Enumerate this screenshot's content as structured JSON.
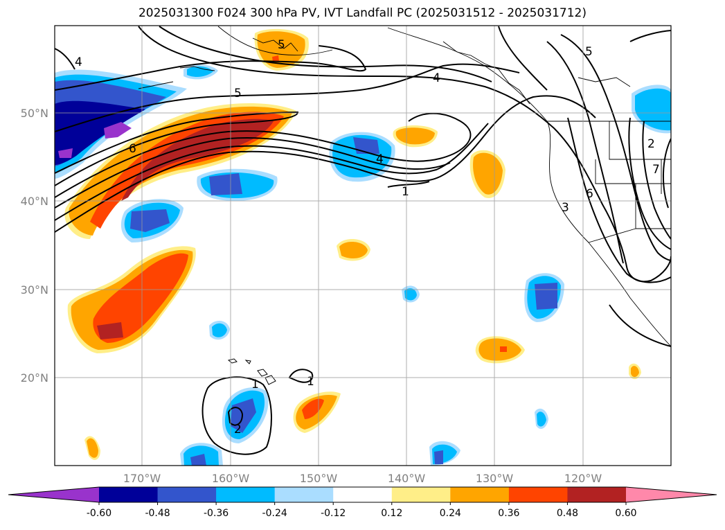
{
  "title": "2025031300 F024 300 hPa PV, IVT Landfall PC (2025031512 - 2025031712)",
  "map": {
    "lat_labels": [
      "50°N",
      "40°N",
      "30°N",
      "20°N"
    ],
    "lon_labels": [
      "170°W",
      "160°W",
      "150°W",
      "140°W",
      "130°W",
      "120°W"
    ],
    "contour_labels": [
      "4",
      "5",
      "5",
      "4",
      "6",
      "4",
      "1",
      "1",
      "1",
      "2",
      "6",
      "3",
      "7",
      "2",
      "5"
    ]
  },
  "colorbar": {
    "ticks": [
      "-0.60",
      "-0.48",
      "-0.36",
      "-0.24",
      "-0.12",
      "0.12",
      "0.24",
      "0.36",
      "0.48",
      "0.60"
    ],
    "colors": [
      "#9933cc",
      "#000099",
      "#3355cc",
      "#00bbff",
      "#aaddff",
      "#ffffff",
      "#ffee88",
      "#ffa500",
      "#ff4400",
      "#b22222",
      "#ff88aa"
    ]
  }
}
